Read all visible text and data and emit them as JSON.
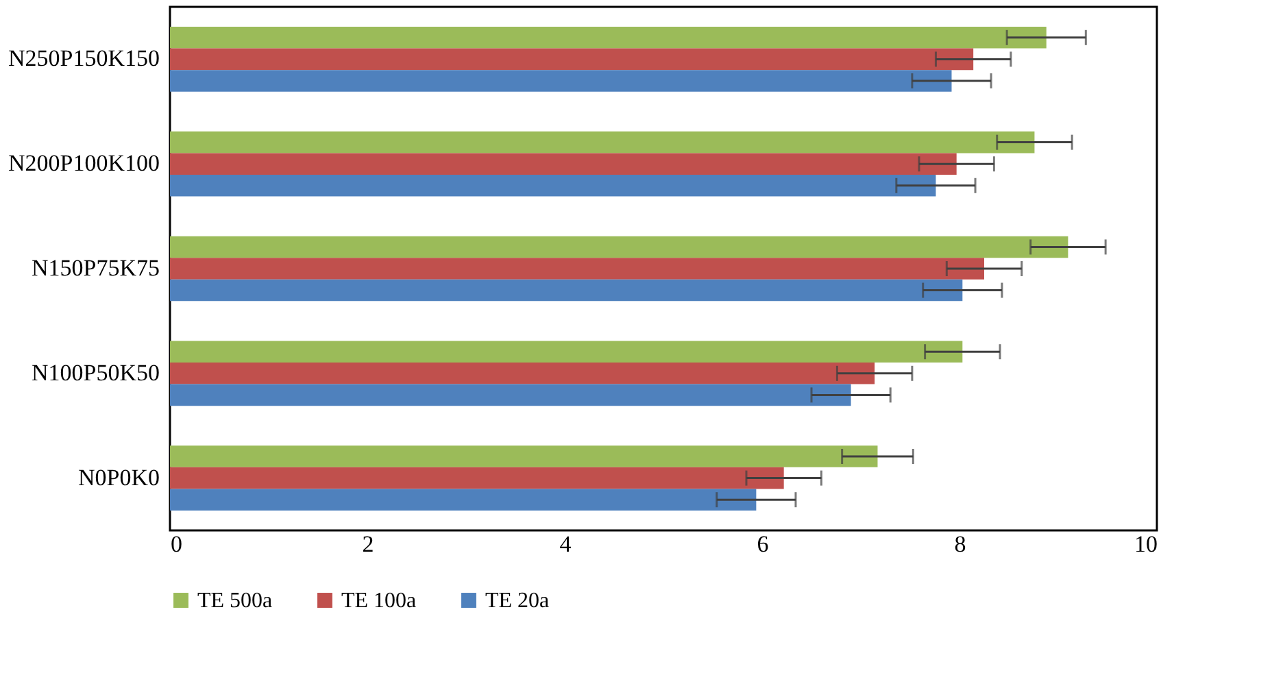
{
  "chart_data": {
    "type": "bar",
    "orientation": "horizontal",
    "categories": [
      "N250P150K150",
      "N200P100K100",
      "N150P75K75",
      "N100P50K50",
      "N0P0K0"
    ],
    "series": [
      {
        "name": "TE 500a",
        "color": "#9bbb59",
        "values": [
          8.88,
          8.76,
          9.1,
          8.03,
          7.17
        ],
        "errors": [
          0.4,
          0.38,
          0.38,
          0.38,
          0.36
        ]
      },
      {
        "name": "TE 100a",
        "color": "#c0504d",
        "values": [
          8.14,
          7.97,
          8.25,
          7.14,
          6.22
        ],
        "errors": [
          0.38,
          0.38,
          0.38,
          0.38,
          0.38
        ]
      },
      {
        "name": "TE 20a",
        "color": "#4f81bd",
        "values": [
          7.92,
          7.76,
          8.03,
          6.9,
          5.94
        ],
        "errors": [
          0.4,
          0.4,
          0.4,
          0.4,
          0.4
        ]
      }
    ],
    "xlim": [
      0,
      10
    ],
    "xticks": [
      0,
      2,
      4,
      6,
      8,
      10
    ],
    "grid": false,
    "legend": "bottom"
  }
}
